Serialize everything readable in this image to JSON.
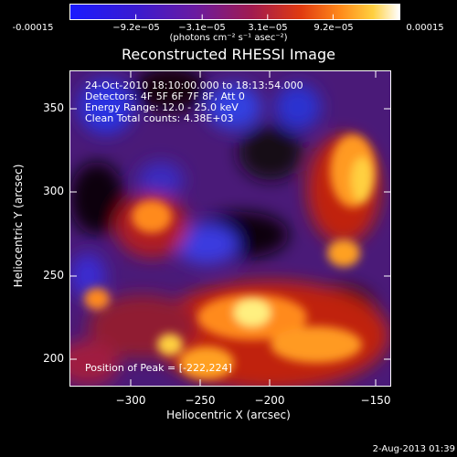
{
  "colorbar": {
    "ticks": [
      "-0.00015",
      "−9.2e−05",
      "−3.1e−05",
      "3.1e−05",
      "9.2e−05",
      "0.00015"
    ],
    "units": "(photons cm⁻² s⁻¹ asec⁻²)",
    "colors": [
      "#1a1aff",
      "#3a1ad0",
      "#6a1aa0",
      "#a01a50",
      "#e03a10",
      "#ff8a1a",
      "#ffd040",
      "#ffffff"
    ]
  },
  "title": "Reconstructed RHESSI Image",
  "info": {
    "line1": "24-Oct-2010 18:10:00.000 to 18:13:54.000",
    "line2": "Detectors: 4F 5F 6F 7F 8F, Att 0",
    "line3": "Energy Range: 12.0 - 25.0 keV",
    "line4": "Clean    Total counts: 4.38E+03",
    "peak": "Position of Peak = [-222,224]"
  },
  "axes": {
    "xlabel": "Heliocentric X (arcsec)",
    "ylabel": "Heliocentric Y (arcsec)",
    "xticks": [
      "−300",
      "−250",
      "−200",
      "−150"
    ],
    "yticks": [
      "350",
      "300",
      "250",
      "200"
    ]
  },
  "timestamp": "2-Aug-2013 01:39"
}
